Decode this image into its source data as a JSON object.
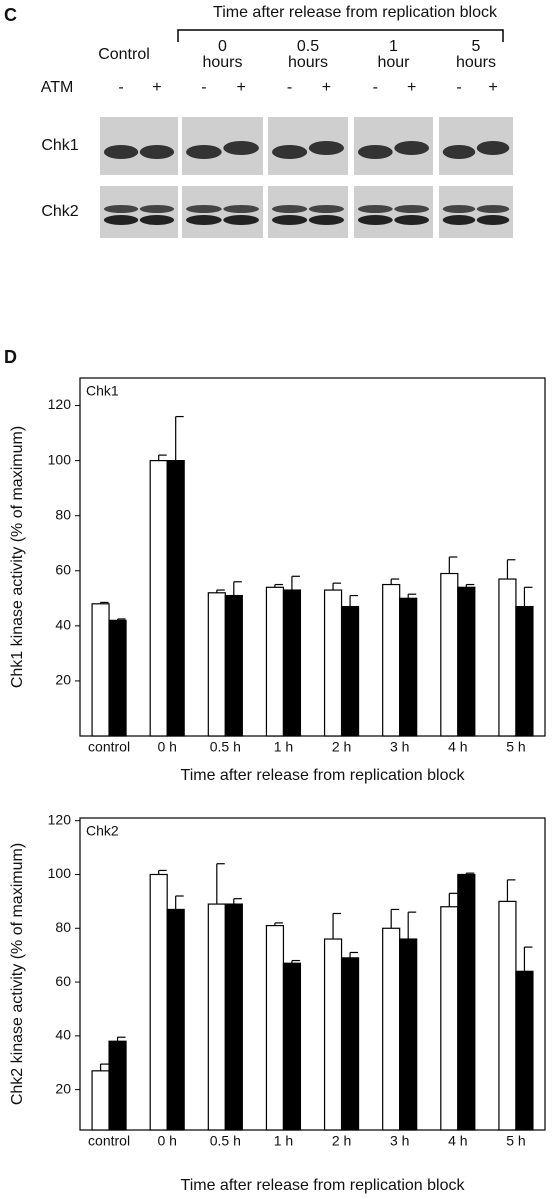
{
  "panel_c": {
    "letter": "C",
    "title": "Time after release from replication block",
    "row_label": "ATM",
    "groups": [
      {
        "label": [
          "Control"
        ],
        "signs": [
          "-",
          "+"
        ]
      },
      {
        "label": [
          "0",
          "hours"
        ],
        "signs": [
          "-",
          "+"
        ]
      },
      {
        "label": [
          "0.5",
          "hours"
        ],
        "signs": [
          "-",
          "+"
        ]
      },
      {
        "label": [
          "1",
          "hour"
        ],
        "signs": [
          "-",
          "+"
        ]
      },
      {
        "label": [
          "5",
          "hours"
        ],
        "signs": [
          "-",
          "+"
        ]
      }
    ],
    "blots": [
      "Chk1",
      "Chk2"
    ]
  },
  "panel_d_label": "D",
  "chart_data": [
    {
      "type": "bar",
      "annotation": "Chk1",
      "x_label": "Time after release from replication block",
      "y_label": "Chk1 kinase activity (% of maximum)",
      "categories": [
        "control",
        "0 h",
        "0.5 h",
        "1 h",
        "2 h",
        "3 h",
        "4 h",
        "5 h"
      ],
      "series": [
        {
          "color": "#ffffff",
          "values": [
            48,
            100,
            52,
            54,
            53,
            55,
            59,
            57
          ],
          "errors": [
            0.5,
            2,
            1,
            1,
            2.5,
            2,
            6,
            7
          ]
        },
        {
          "color": "#000000",
          "values": [
            42,
            100,
            51,
            53,
            47,
            50,
            54,
            47
          ],
          "errors": [
            0.5,
            16,
            5,
            5,
            4,
            1.5,
            1,
            7
          ]
        }
      ],
      "ylim": [
        0,
        130
      ],
      "yticks": [
        20,
        40,
        60,
        80,
        100,
        120
      ]
    },
    {
      "type": "bar",
      "annotation": "Chk2",
      "x_label": "Time after release from replication block",
      "y_label": "Chk2 kinase activity (% of maximum)",
      "categories": [
        "control",
        "0 h",
        "0.5 h",
        "1 h",
        "2 h",
        "3 h",
        "4 h",
        "5 h"
      ],
      "series": [
        {
          "color": "#ffffff",
          "values": [
            27,
            100,
            89,
            81,
            76,
            80,
            88,
            90
          ],
          "errors": [
            2.5,
            1.5,
            15,
            1,
            9.5,
            7,
            5,
            8
          ]
        },
        {
          "color": "#000000",
          "values": [
            38,
            87,
            89,
            67,
            69,
            76,
            100,
            64
          ],
          "errors": [
            1.5,
            5,
            2,
            1,
            2,
            10,
            0.5,
            9
          ]
        }
      ],
      "ylim": [
        5,
        121
      ],
      "yticks": [
        20,
        40,
        60,
        80,
        100,
        120
      ]
    }
  ]
}
